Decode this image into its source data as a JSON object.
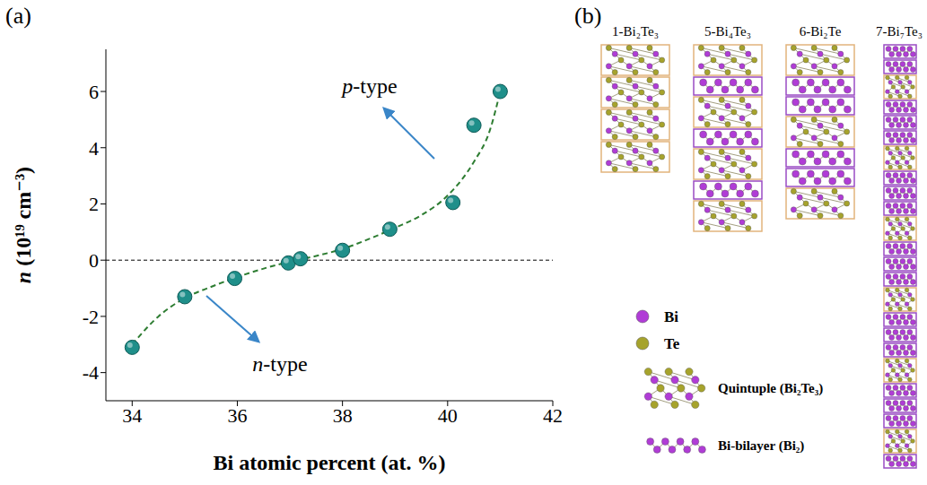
{
  "panel_labels": [
    "(a)",
    "(b)"
  ],
  "chart_data": {
    "type": "scatter",
    "x_label": "Bi atomic percent (at. %)",
    "y_label": "n (10¹⁹ cm⁻³)",
    "x": [
      34,
      35,
      35.95,
      36.97,
      37.2,
      38,
      38.9,
      40.1,
      40.5,
      41
    ],
    "values": [
      -3.1,
      -1.3,
      -0.65,
      -0.1,
      0.05,
      0.35,
      1.1,
      2.05,
      4.8,
      6.0
    ],
    "color": "#1f8f8a",
    "marker": "circle",
    "xlim": [
      33.5,
      42
    ],
    "ylim": [
      -5,
      7.5
    ],
    "xticks": [
      34,
      36,
      38,
      40,
      42
    ],
    "yticks": [
      -4,
      -2,
      0,
      2,
      4,
      6
    ],
    "grid": false,
    "fit": {
      "x": [
        34,
        34.5,
        35,
        35.5,
        36,
        36.5,
        37,
        37.5,
        38,
        38.5,
        39,
        39.5,
        40,
        40.5,
        40.8,
        41
      ],
      "values": [
        -3.0,
        -2.0,
        -1.35,
        -0.95,
        -0.6,
        -0.3,
        -0.05,
        0.15,
        0.4,
        0.75,
        1.15,
        1.6,
        2.3,
        3.5,
        4.6,
        6.0
      ],
      "color": "#2e7d32",
      "line_style": "dashed"
    },
    "reference_line": {
      "y": 0,
      "color": "#000000",
      "line_style": "dashed"
    },
    "annotations": [
      {
        "text": "p-type",
        "color": "#3a86c8"
      },
      {
        "text": "n-type",
        "color": "#3a86c8"
      }
    ]
  },
  "diagram": {
    "structures": [
      {
        "label": "1-Bi₂Te₃",
        "layers": [
          "quintuple",
          "quintuple",
          "quintuple",
          "quintuple"
        ]
      },
      {
        "label": "5-Bi₄Te₃",
        "layers": [
          "quintuple",
          "bilayer",
          "quintuple",
          "bilayer",
          "quintuple",
          "bilayer",
          "quintuple"
        ]
      },
      {
        "label": "6-Bi₂Te",
        "layers": [
          "quintuple",
          "bilayer",
          "bilayer",
          "quintuple",
          "bilayer",
          "bilayer",
          "quintuple"
        ]
      },
      {
        "label": "7-Bi₇Te₃",
        "layers": [
          "bilayer",
          "bilayer",
          "quintuple",
          "bilayer",
          "bilayer",
          "bilayer",
          "quintuple",
          "bilayer",
          "bilayer",
          "bilayer",
          "quintuple",
          "bilayer",
          "bilayer",
          "bilayer",
          "quintuple",
          "bilayer",
          "bilayer",
          "bilayer",
          "quintuple",
          "bilayer",
          "bilayer",
          "bilayer",
          "quintuple",
          "bilayer"
        ]
      }
    ],
    "legend": [
      {
        "label": "Bi",
        "color": "#b03cd6"
      },
      {
        "label": "Te",
        "color": "#a6a32c"
      },
      {
        "label": "Quintuple (Bi₂Te₃)",
        "color": "#e2b47c"
      },
      {
        "label": "Bi-bilayer (Bi₂)",
        "color": "#9a4cc4"
      }
    ]
  }
}
